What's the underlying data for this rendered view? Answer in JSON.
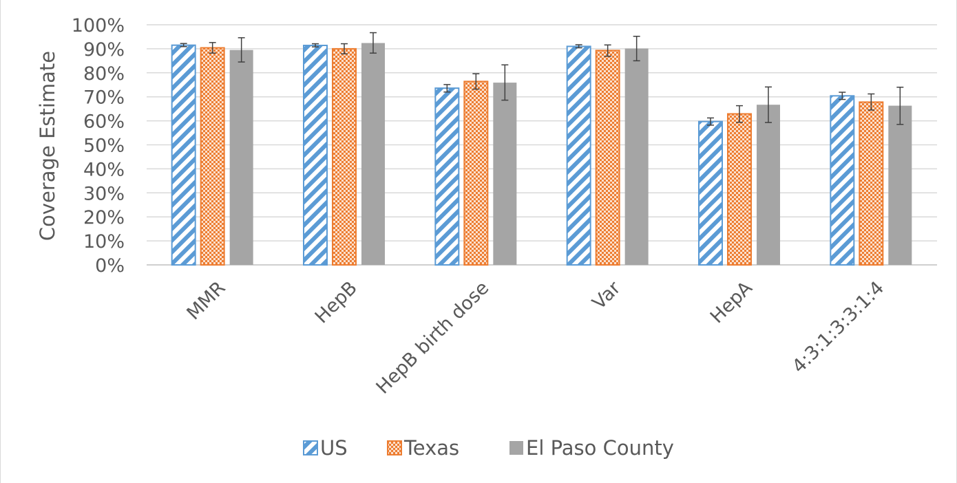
{
  "chart_data": {
    "type": "bar",
    "title": "",
    "xlabel": "",
    "ylabel": "Coverage Estimate",
    "ylim": [
      0,
      100
    ],
    "yticks": [
      "0%",
      "10%",
      "20%",
      "30%",
      "40%",
      "50%",
      "60%",
      "70%",
      "80%",
      "90%",
      "100%"
    ],
    "grid": true,
    "legend_position": "bottom",
    "categories": [
      "MMR",
      "HepB",
      "HepB birth dose",
      "Var",
      "HepA",
      "4:3:1:3:3:1:4"
    ],
    "series": [
      {
        "name": "US",
        "pattern": "diagonal-stripes",
        "color": "#5b9bd5",
        "values": [
          91.5,
          91.4,
          73.6,
          91.0,
          59.7,
          70.4
        ],
        "error_low": [
          90.9,
          90.8,
          72.0,
          90.4,
          58.2,
          68.9
        ],
        "error_high": [
          92.2,
          92.1,
          75.1,
          91.7,
          61.2,
          71.9
        ]
      },
      {
        "name": "Texas",
        "pattern": "checkered",
        "color": "#ed7d31",
        "values": [
          90.4,
          90.0,
          76.4,
          89.3,
          62.9,
          67.8
        ],
        "error_low": [
          88.2,
          87.9,
          73.2,
          86.9,
          59.4,
          64.5
        ],
        "error_high": [
          92.6,
          92.1,
          79.6,
          91.6,
          66.3,
          71.2
        ]
      },
      {
        "name": "El Paso County",
        "pattern": "solid",
        "color": "#a5a5a5",
        "values": [
          89.5,
          92.4,
          75.9,
          90.1,
          66.7,
          66.3
        ],
        "error_low": [
          84.5,
          88.2,
          68.6,
          85.0,
          59.3,
          58.5
        ],
        "error_high": [
          94.6,
          96.7,
          83.3,
          95.2,
          74.1,
          74.0
        ]
      }
    ]
  }
}
